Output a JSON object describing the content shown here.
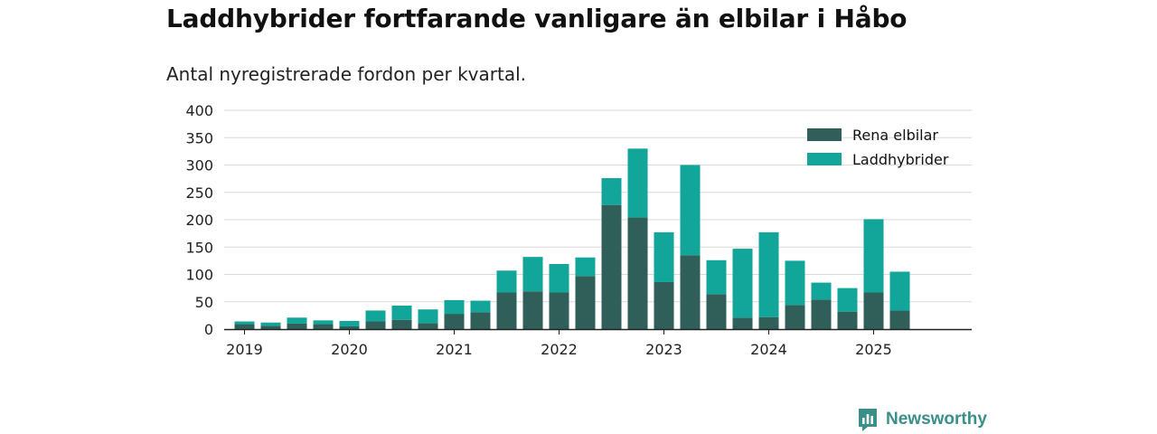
{
  "title": "Laddhybrider fortfarande vanligare än elbilar i Håbo",
  "subtitle": "Antal nyregistrerade fordon per kvartal.",
  "brand": {
    "name": "Newsworthy",
    "icon": "newsworthy-logo-icon",
    "color": "#3a8f88"
  },
  "chart_data": {
    "type": "bar",
    "stacked": true,
    "categories": [
      "2019 Q1",
      "2019 Q2",
      "2019 Q3",
      "2019 Q4",
      "2020 Q1",
      "2020 Q2",
      "2020 Q3",
      "2020 Q4",
      "2021 Q1",
      "2021 Q2",
      "2021 Q3",
      "2021 Q4",
      "2022 Q1",
      "2022 Q2",
      "2022 Q3",
      "2022 Q4",
      "2023 Q1",
      "2023 Q2",
      "2023 Q3",
      "2023 Q4",
      "2024 Q1",
      "2024 Q2",
      "2024 Q3",
      "2024 Q4",
      "2025 Q1",
      "2025 Q2",
      "2025 Q3"
    ],
    "series": [
      {
        "name": "Rena elbilar",
        "color": "#2f5f58",
        "values": [
          9,
          6,
          10,
          9,
          5,
          14,
          17,
          11,
          28,
          31,
          67,
          69,
          67,
          97,
          227,
          204,
          86,
          135,
          64,
          21,
          22,
          44,
          54,
          32,
          67,
          34,
          0
        ]
      },
      {
        "name": "Laddhybrider",
        "color": "#12a69b",
        "values": [
          5,
          6,
          11,
          7,
          10,
          20,
          26,
          25,
          25,
          21,
          40,
          63,
          52,
          34,
          49,
          126,
          91,
          165,
          62,
          126,
          155,
          81,
          31,
          43,
          134,
          71,
          0
        ]
      }
    ],
    "x_tick_labels": [
      "2019",
      "2020",
      "2021",
      "2022",
      "2023",
      "2024",
      "2025"
    ],
    "y_ticks": [
      0,
      50,
      100,
      150,
      200,
      250,
      300,
      350,
      400
    ],
    "ylim": [
      0,
      400
    ],
    "xlabel": "",
    "ylabel": "",
    "grid": true,
    "legend_position": "top-right"
  }
}
